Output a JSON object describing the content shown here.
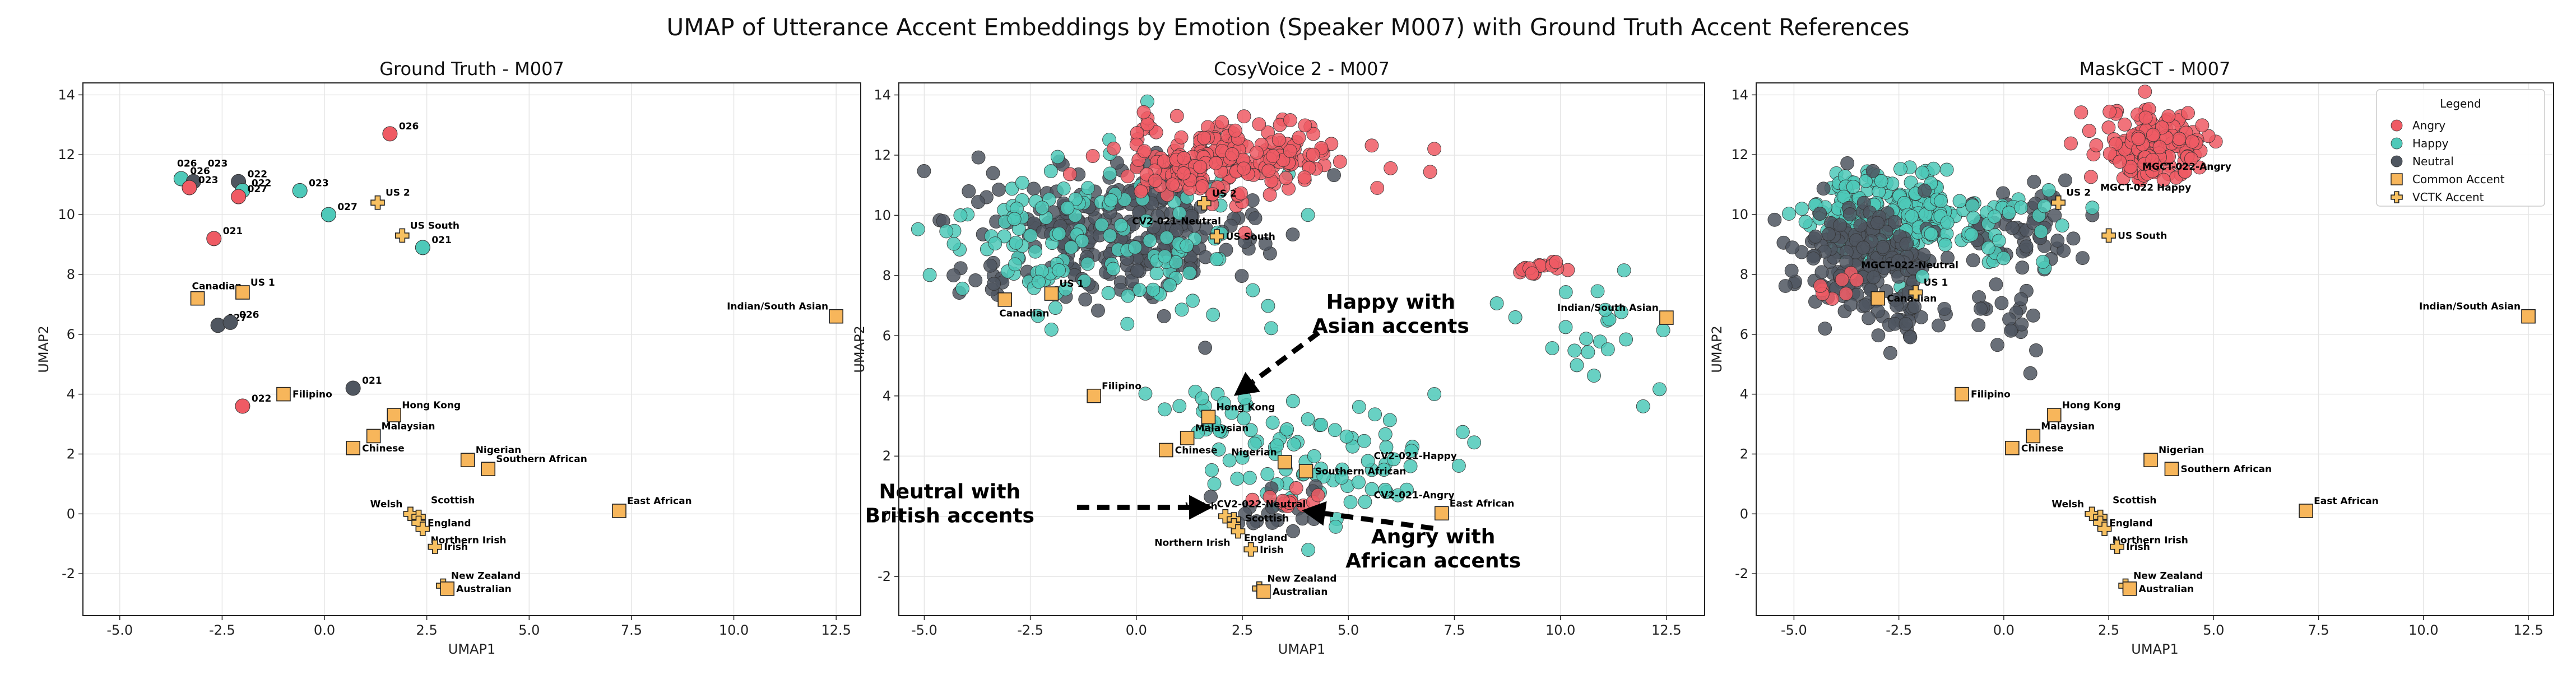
{
  "title": "UMAP of Utterance Accent Embeddings by Emotion (Speaker M007) with Ground Truth Accent References",
  "colors": {
    "Angry": "#ef5b64",
    "Happy": "#4ec9b9",
    "Neutral": "#4f5660",
    "Common": "#f7b65b",
    "VCTK": "#f7c060"
  },
  "legend": {
    "title": "Legend",
    "items": [
      {
        "label": "Angry",
        "kind": "Angry"
      },
      {
        "label": "Happy",
        "kind": "Happy"
      },
      {
        "label": "Neutral",
        "kind": "Neutral"
      },
      {
        "label": "Common Accent",
        "kind": "Common"
      },
      {
        "label": "VCTK Accent",
        "kind": "VCTK"
      }
    ]
  },
  "chart_data": [
    {
      "type": "scatter",
      "title": "Ground Truth - M007",
      "xlabel": "UMAP1",
      "ylabel": "UMAP2",
      "xlim": [
        -5.9,
        13.1
      ],
      "ylim": [
        -3.4,
        14.4
      ],
      "xticks": [
        "-5.0",
        "-2.5",
        "0.0",
        "2.5",
        "5.0",
        "7.5",
        "10.0",
        "12.5"
      ],
      "yticks": [
        "-2",
        "0",
        "2",
        "4",
        "6",
        "8",
        "10",
        "12",
        "14"
      ],
      "grid": true,
      "points": [
        {
          "x": -3.5,
          "y": 11.2,
          "emotion": "Happy",
          "label": "026"
        },
        {
          "x": -3.2,
          "y": 11.1,
          "emotion": "Neutral",
          "label": ""
        },
        {
          "x": -3.3,
          "y": 10.9,
          "emotion": "Angry",
          "label": "023"
        },
        {
          "x": -2.1,
          "y": 11.1,
          "emotion": "Neutral",
          "label": "022"
        },
        {
          "x": -2.0,
          "y": 10.8,
          "emotion": "Happy",
          "label": "022"
        },
        {
          "x": -2.1,
          "y": 10.6,
          "emotion": "Angry",
          "label": "027"
        },
        {
          "x": -0.6,
          "y": 10.8,
          "emotion": "Happy",
          "label": "023"
        },
        {
          "x": 0.1,
          "y": 10.0,
          "emotion": "Happy",
          "label": "027"
        },
        {
          "x": 1.6,
          "y": 12.7,
          "emotion": "Angry",
          "label": "026"
        },
        {
          "x": -2.7,
          "y": 9.2,
          "emotion": "Angry",
          "label": "021"
        },
        {
          "x": 2.4,
          "y": 8.9,
          "emotion": "Happy",
          "label": "021"
        },
        {
          "x": -2.6,
          "y": 6.3,
          "emotion": "Neutral",
          "label": "027"
        },
        {
          "x": -2.3,
          "y": 6.4,
          "emotion": "Neutral",
          "label": "026"
        },
        {
          "x": 0.7,
          "y": 4.2,
          "emotion": "Neutral",
          "label": "021"
        },
        {
          "x": -2.0,
          "y": 3.6,
          "emotion": "Angry",
          "label": "022"
        }
      ],
      "group_labels": [
        {
          "x": -3.6,
          "y": 11.6,
          "text": "026"
        },
        {
          "x": -2.85,
          "y": 11.6,
          "text": "023"
        }
      ],
      "references": [
        {
          "x": -3.1,
          "y": 7.2,
          "kind": "Common",
          "label": "Canadian",
          "anchor": "above"
        },
        {
          "x": -2.0,
          "y": 7.4,
          "kind": "Common",
          "label": "US 1",
          "anchor": "aboveRight"
        },
        {
          "x": 1.3,
          "y": 10.4,
          "kind": "VCTK",
          "label": "US 2",
          "anchor": "aboveRight"
        },
        {
          "x": 1.9,
          "y": 9.3,
          "kind": "VCTK",
          "label": "US South",
          "anchor": "aboveRight"
        },
        {
          "x": -1.0,
          "y": 4.0,
          "kind": "Common",
          "label": "Filipino",
          "anchor": "right"
        },
        {
          "x": 1.7,
          "y": 3.3,
          "kind": "Common",
          "label": "Hong Kong",
          "anchor": "aboveRight"
        },
        {
          "x": 1.2,
          "y": 2.6,
          "kind": "Common",
          "label": "Malaysian",
          "anchor": "aboveRight"
        },
        {
          "x": 0.7,
          "y": 2.2,
          "kind": "Common",
          "label": "Chinese",
          "anchor": "right"
        },
        {
          "x": 3.5,
          "y": 1.8,
          "kind": "Common",
          "label": "Nigerian",
          "anchor": "aboveRight"
        },
        {
          "x": 4.0,
          "y": 1.5,
          "kind": "Common",
          "label": "Southern African",
          "anchor": "aboveRight"
        },
        {
          "x": 2.1,
          "y": 0.0,
          "kind": "VCTK",
          "label": "Welsh",
          "anchor": "aboveLeft"
        },
        {
          "x": 2.3,
          "y": -0.1,
          "kind": "VCTK",
          "label": "Scottish",
          "anchor": "aboveRight2"
        },
        {
          "x": 2.3,
          "y": -0.3,
          "kind": "VCTK",
          "label": "England",
          "anchor": "right"
        },
        {
          "x": 2.4,
          "y": -0.5,
          "kind": "VCTK",
          "label": "Northern Irish",
          "anchor": "belowRight"
        },
        {
          "x": 2.7,
          "y": -1.1,
          "kind": "VCTK",
          "label": "Irish",
          "anchor": "right"
        },
        {
          "x": 2.9,
          "y": -2.4,
          "kind": "VCTK",
          "label": "New Zealand",
          "anchor": "aboveRight"
        },
        {
          "x": 3.0,
          "y": -2.5,
          "kind": "Common",
          "label": "Australian",
          "anchor": "right"
        },
        {
          "x": 7.2,
          "y": 0.1,
          "kind": "Common",
          "label": "East African",
          "anchor": "aboveRight"
        },
        {
          "x": 12.5,
          "y": 6.6,
          "kind": "Common",
          "label": "Indian/South Asian",
          "anchor": "aboveLeft"
        }
      ]
    },
    {
      "type": "scatter",
      "title": "CosyVoice 2 - M007",
      "xlabel": "UMAP1",
      "ylabel": "UMAP2",
      "xlim": [
        -5.6,
        13.4
      ],
      "ylim": [
        -3.3,
        14.4
      ],
      "xticks": [
        "-5.0",
        "-2.5",
        "0.0",
        "2.5",
        "5.0",
        "7.5",
        "10.0",
        "12.5"
      ],
      "yticks": [
        "-2",
        "0",
        "2",
        "4",
        "6",
        "8",
        "10",
        "12",
        "14"
      ],
      "grid": true,
      "clusters": [
        {
          "emotion": "Neutral",
          "cx": -0.5,
          "cy": 9.5,
          "sx": 1.7,
          "sy": 1.1,
          "n": 260
        },
        {
          "emotion": "Happy",
          "cx": -1.0,
          "cy": 9.2,
          "sx": 2.1,
          "sy": 1.4,
          "n": 150
        },
        {
          "emotion": "Angry",
          "cx": 2.1,
          "cy": 11.8,
          "sx": 1.3,
          "sy": 0.65,
          "n": 220
        },
        {
          "emotion": "Happy",
          "cx": 4.8,
          "cy": 1.8,
          "sx": 1.4,
          "sy": 0.9,
          "n": 70
        },
        {
          "emotion": "Happy",
          "cx": 2.1,
          "cy": 3.4,
          "sx": 0.9,
          "sy": 0.6,
          "n": 25
        },
        {
          "emotion": "Happy",
          "cx": 10.7,
          "cy": 6.0,
          "sx": 0.9,
          "sy": 0.8,
          "n": 22
        },
        {
          "emotion": "Angry",
          "cx": 9.6,
          "cy": 8.2,
          "sx": 0.35,
          "sy": 0.18,
          "n": 16
        },
        {
          "emotion": "Neutral",
          "cx": 3.2,
          "cy": 0.2,
          "sx": 0.6,
          "sy": 0.45,
          "n": 18
        },
        {
          "emotion": "Angry",
          "cx": 3.6,
          "cy": 0.6,
          "sx": 0.35,
          "sy": 0.3,
          "n": 12
        }
      ],
      "annotations": [
        {
          "text": "Happy with",
          "x": 6.0,
          "y": 6.9
        },
        {
          "text": "Asian accents",
          "x": 6.0,
          "y": 6.1
        },
        {
          "text": "Neutral with",
          "x": -4.4,
          "y": 0.6
        },
        {
          "text": "British accents",
          "x": -4.4,
          "y": -0.2
        },
        {
          "text": "Angry with",
          "x": 7.0,
          "y": -0.9
        },
        {
          "text": "African accents",
          "x": 7.0,
          "y": -1.7
        }
      ],
      "arrows": [
        {
          "x1": 4.3,
          "y1": 6.1,
          "x2": 2.3,
          "y2": 4.0
        },
        {
          "x1": -1.4,
          "y1": 0.3,
          "x2": 1.8,
          "y2": 0.3
        },
        {
          "x1": 7.0,
          "y1": -0.4,
          "x2": 3.9,
          "y2": 0.2
        }
      ],
      "references": [
        {
          "x": 1.6,
          "y": 10.4,
          "kind": "VCTK",
          "label": "US 2",
          "anchor": "aboveRight"
        },
        {
          "x": 1.9,
          "y": 9.3,
          "kind": "VCTK",
          "label": "US South",
          "anchor": "right"
        },
        {
          "x": -3.1,
          "y": 7.2,
          "kind": "Common",
          "label": "Canadian",
          "anchor": "below"
        },
        {
          "x": -2.0,
          "y": 7.4,
          "kind": "Common",
          "label": "US 1",
          "anchor": "aboveRight"
        },
        {
          "x": -1.0,
          "y": 4.0,
          "kind": "Common",
          "label": "Filipino",
          "anchor": "aboveRight"
        },
        {
          "x": 1.7,
          "y": 3.3,
          "kind": "Common",
          "label": "Hong Kong",
          "anchor": "aboveRight"
        },
        {
          "x": 1.2,
          "y": 2.6,
          "kind": "Common",
          "label": "Malaysian",
          "anchor": "aboveRight"
        },
        {
          "x": 0.7,
          "y": 2.2,
          "kind": "Common",
          "label": "Chinese",
          "anchor": "right"
        },
        {
          "x": 3.5,
          "y": 1.8,
          "kind": "Common",
          "label": "Nigerian",
          "anchor": "aboveLeft"
        },
        {
          "x": 4.0,
          "y": 1.5,
          "kind": "Common",
          "label": "Southern African",
          "anchor": "right"
        },
        {
          "x": 2.1,
          "y": 0.0,
          "kind": "VCTK",
          "label": "Welsh",
          "anchor": "aboveLeft"
        },
        {
          "x": 2.3,
          "y": -0.1,
          "kind": "VCTK",
          "label": "Scottish",
          "anchor": "right2"
        },
        {
          "x": 2.3,
          "y": -0.3,
          "kind": "VCTK",
          "label": "England",
          "anchor": "belowRight2"
        },
        {
          "x": 2.4,
          "y": -0.5,
          "kind": "VCTK",
          "label": "Northern Irish",
          "anchor": "belowLeft"
        },
        {
          "x": 2.7,
          "y": -1.1,
          "kind": "VCTK",
          "label": "Irish",
          "anchor": "right"
        },
        {
          "x": 2.9,
          "y": -2.4,
          "kind": "VCTK",
          "label": "New Zealand",
          "anchor": "aboveRight"
        },
        {
          "x": 3.0,
          "y": -2.5,
          "kind": "Common",
          "label": "Australian",
          "anchor": "right"
        },
        {
          "x": 7.2,
          "y": 0.1,
          "kind": "Common",
          "label": "East African",
          "anchor": "aboveRight"
        },
        {
          "x": 12.5,
          "y": 6.6,
          "kind": "Common",
          "label": "Indian/South Asian",
          "anchor": "aboveLeft"
        }
      ],
      "point_labels": [
        {
          "x": -0.1,
          "y": 9.7,
          "text": "CV2-021-Neutral"
        },
        {
          "x": 5.6,
          "y": 1.9,
          "text": "CV2-021-Happy"
        },
        {
          "x": 1.9,
          "y": 0.3,
          "text": "CV2-022-Neutral"
        },
        {
          "x": 5.6,
          "y": 0.6,
          "text": "CV2-021-Angry"
        }
      ]
    },
    {
      "type": "scatter",
      "title": "MaskGCT - M007",
      "xlabel": "UMAP1",
      "ylabel": "UMAP2",
      "xlim": [
        -5.9,
        13.1
      ],
      "ylim": [
        -3.4,
        14.4
      ],
      "xticks": [
        "-5.0",
        "-2.5",
        "0.0",
        "2.5",
        "5.0",
        "7.5",
        "10.0",
        "12.5"
      ],
      "yticks": [
        "-2",
        "0",
        "2",
        "4",
        "6",
        "8",
        "10",
        "12",
        "14"
      ],
      "grid": true,
      "clusters": [
        {
          "emotion": "Happy",
          "cx": -2.7,
          "cy": 10.0,
          "sx": 0.9,
          "sy": 0.75,
          "n": 230
        },
        {
          "emotion": "Neutral",
          "cx": -3.3,
          "cy": 8.6,
          "sx": 0.8,
          "sy": 0.9,
          "n": 170
        },
        {
          "emotion": "Neutral",
          "cx": -2.4,
          "cy": 6.6,
          "sx": 0.35,
          "sy": 0.5,
          "n": 25
        },
        {
          "emotion": "Angry",
          "cx": 3.5,
          "cy": 12.3,
          "sx": 0.65,
          "sy": 0.55,
          "n": 150
        },
        {
          "emotion": "Neutral",
          "cx": 0.4,
          "cy": 9.3,
          "sx": 0.7,
          "sy": 0.8,
          "n": 55
        },
        {
          "emotion": "Happy",
          "cx": -0.3,
          "cy": 9.6,
          "sx": 1.1,
          "sy": 0.9,
          "n": 40
        },
        {
          "emotion": "Neutral",
          "cx": 0.0,
          "cy": 6.5,
          "sx": 0.5,
          "sy": 0.6,
          "n": 20
        },
        {
          "emotion": "Angry",
          "cx": -4.2,
          "cy": 7.5,
          "sx": 0.25,
          "sy": 0.2,
          "n": 8
        }
      ],
      "references": [
        {
          "x": 1.3,
          "y": 10.4,
          "kind": "VCTK",
          "label": "US 2",
          "anchor": "aboveRight"
        },
        {
          "x": 2.5,
          "y": 9.3,
          "kind": "VCTK",
          "label": "US South",
          "anchor": "right"
        },
        {
          "x": -3.0,
          "y": 7.2,
          "kind": "Common",
          "label": "Canadian",
          "anchor": "right"
        },
        {
          "x": -2.1,
          "y": 7.4,
          "kind": "VCTK",
          "label": "US 1",
          "anchor": "aboveRight"
        },
        {
          "x": -1.0,
          "y": 4.0,
          "kind": "Common",
          "label": "Filipino",
          "anchor": "right"
        },
        {
          "x": 1.2,
          "y": 3.3,
          "kind": "Common",
          "label": "Hong Kong",
          "anchor": "aboveRight"
        },
        {
          "x": 0.7,
          "y": 2.6,
          "kind": "Common",
          "label": "Malaysian",
          "anchor": "aboveRight"
        },
        {
          "x": 0.2,
          "y": 2.2,
          "kind": "Common",
          "label": "Chinese",
          "anchor": "right"
        },
        {
          "x": 3.5,
          "y": 1.8,
          "kind": "Common",
          "label": "Nigerian",
          "anchor": "aboveRight"
        },
        {
          "x": 4.0,
          "y": 1.5,
          "kind": "Common",
          "label": "Southern African",
          "anchor": "right"
        },
        {
          "x": 2.1,
          "y": 0.0,
          "kind": "VCTK",
          "label": "Welsh",
          "anchor": "aboveLeft"
        },
        {
          "x": 2.3,
          "y": -0.1,
          "kind": "VCTK",
          "label": "Scottish",
          "anchor": "aboveRight2"
        },
        {
          "x": 2.3,
          "y": -0.3,
          "kind": "VCTK",
          "label": "England",
          "anchor": "right"
        },
        {
          "x": 2.4,
          "y": -0.5,
          "kind": "VCTK",
          "label": "Northern Irish",
          "anchor": "belowRight"
        },
        {
          "x": 2.7,
          "y": -1.1,
          "kind": "VCTK",
          "label": "Irish",
          "anchor": "right"
        },
        {
          "x": 2.9,
          "y": -2.4,
          "kind": "VCTK",
          "label": "New Zealand",
          "anchor": "aboveRight"
        },
        {
          "x": 3.0,
          "y": -2.5,
          "kind": "Common",
          "label": "Australian",
          "anchor": "right"
        },
        {
          "x": 7.2,
          "y": 0.1,
          "kind": "Common",
          "label": "East African",
          "anchor": "aboveRight"
        },
        {
          "x": 12.5,
          "y": 6.6,
          "kind": "Common",
          "label": "Indian/South Asian",
          "anchor": "aboveLeft"
        }
      ],
      "point_labels": [
        {
          "x": 3.3,
          "y": 11.5,
          "text": "MGCT-022-Angry"
        },
        {
          "x": 2.3,
          "y": 10.8,
          "text": "MGCT-022 Happy"
        },
        {
          "x": -3.4,
          "y": 8.2,
          "text": "MGCT-022-Neutral"
        }
      ]
    }
  ]
}
